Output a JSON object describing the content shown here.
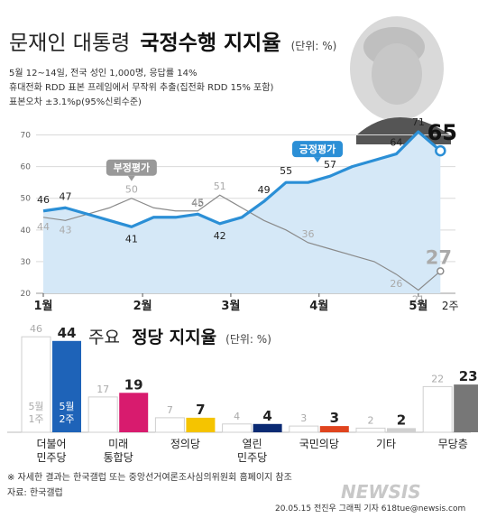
{
  "header": {
    "title_light": "문재인 대통령",
    "title_bold": "국정수행 지지율",
    "unit": "(단위: %)",
    "notes": [
      "5월 12~14일, 전국 성인 1,000명, 응답률 14%",
      "휴대전화 RDD 표본 프레임에서 무작위 추출(집전화 RDD 15% 포함)",
      "표본오차 ±3.1%p(95%신뢰수준)"
    ]
  },
  "chart_data": [
    {
      "type": "line",
      "title": "문재인 대통령 국정수행 지지율",
      "ylim": [
        20,
        75
      ],
      "y_ticks": [
        20,
        30,
        40,
        50,
        60,
        70
      ],
      "x_ticks": [
        {
          "label": "1월",
          "x": 0
        },
        {
          "label": "2월",
          "x": 4.5
        },
        {
          "label": "3월",
          "x": 8.5
        },
        {
          "label": "4월",
          "x": 12.5
        },
        {
          "label": "5월",
          "x": 17
        },
        {
          "label": "2주",
          "x": 18.2
        }
      ],
      "series": [
        {
          "name": "긍정평가",
          "color": "#2b8fd6",
          "x": [
            0,
            1,
            2,
            3,
            4,
            5,
            6,
            7,
            8,
            9,
            10,
            11,
            12,
            13,
            14,
            15,
            16,
            17,
            18
          ],
          "values": [
            46,
            47,
            45,
            43,
            41,
            44,
            44,
            45,
            42,
            44,
            49,
            55,
            55,
            57,
            60,
            62,
            64,
            71,
            65
          ],
          "labels": [
            {
              "x": 0,
              "value": 46,
              "text": "46"
            },
            {
              "x": 1,
              "value": 47,
              "text": "47"
            },
            {
              "x": 4,
              "value": 41,
              "text": "41"
            },
            {
              "x": 7,
              "value": 45,
              "text": "45"
            },
            {
              "x": 8,
              "value": 42,
              "text": "42"
            },
            {
              "x": 10,
              "value": 49,
              "text": "49"
            },
            {
              "x": 11,
              "value": 55,
              "text": "55"
            },
            {
              "x": 13,
              "value": 57,
              "text": "57"
            },
            {
              "x": 16,
              "value": 64,
              "text": "64"
            },
            {
              "x": 17,
              "value": 71,
              "text": "71"
            },
            {
              "x": 18,
              "value": 65,
              "text": "65"
            }
          ]
        },
        {
          "name": "부정평가",
          "color": "#8a8a8a",
          "x": [
            0,
            1,
            2,
            3,
            4,
            5,
            6,
            7,
            8,
            9,
            10,
            11,
            12,
            13,
            14,
            15,
            16,
            17,
            18
          ],
          "values": [
            44,
            43,
            45,
            47,
            50,
            47,
            46,
            46,
            51,
            47,
            43,
            40,
            36,
            34,
            32,
            30,
            26,
            21,
            27
          ],
          "labels": [
            {
              "x": 0,
              "value": 44,
              "text": "44"
            },
            {
              "x": 1,
              "value": 43,
              "text": "43"
            },
            {
              "x": 4,
              "value": 50,
              "text": "50"
            },
            {
              "x": 7,
              "value": 46,
              "text": "46"
            },
            {
              "x": 8,
              "value": 51,
              "text": "51"
            },
            {
              "x": 12,
              "value": 36,
              "text": "36"
            },
            {
              "x": 16,
              "value": 26,
              "text": "26"
            },
            {
              "x": 17,
              "value": 21,
              "text": "21"
            },
            {
              "x": 18,
              "value": 27,
              "text": "27"
            }
          ]
        }
      ],
      "callouts": [
        {
          "text": "긍정평가",
          "x": 13,
          "value": 57
        },
        {
          "text": "부정평가",
          "x": 4,
          "value": 50
        }
      ]
    },
    {
      "type": "bar",
      "title_light": "주요",
      "title_bold": "정당 지지율",
      "unit": "(단위: %)",
      "ylim": [
        0,
        46
      ],
      "categories": [
        "더불어\n민주당",
        "미래\n통합당",
        "정의당",
        "열린\n민주당",
        "국민의당",
        "기타",
        "무당층"
      ],
      "series": [
        {
          "name": "5월\n1주",
          "values": [
            46,
            17,
            7,
            4,
            3,
            2,
            22
          ]
        },
        {
          "name": "5월\n2주",
          "values": [
            44,
            19,
            7,
            4,
            3,
            2,
            23
          ]
        }
      ],
      "colors": [
        "#1e63b8",
        "#d81b6e",
        "#f5c400",
        "#0a2a73",
        "#e0441e",
        "#d0d0d0",
        "#777777"
      ]
    }
  ],
  "footer": {
    "note": "※ 자세한 결과는 한국갤럽 또는 중앙선거여론조사심의위원회 홈페이지 참조",
    "source": "자료: 한국갤럽",
    "credit": "20.05.15 전진우 그래픽 기자 618tue@newsis.com",
    "logo": "NEWSIS"
  }
}
